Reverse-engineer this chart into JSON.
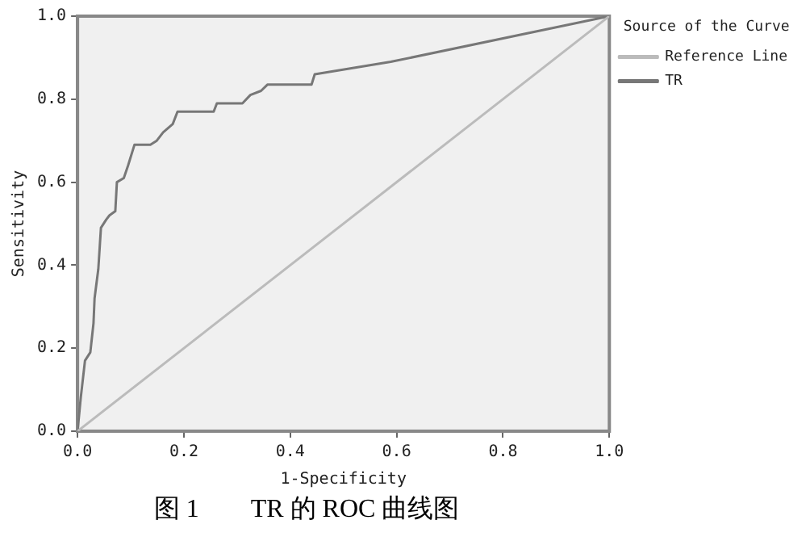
{
  "chart_data": {
    "type": "line",
    "title": "图 1　　TR 的 ROC 曲线图",
    "xlabel": "1-Specificity",
    "ylabel": "Sensitivity",
    "legend_title": "Source of the Curve",
    "legend": "right",
    "grid": false,
    "marker": "none",
    "line_style": "solid",
    "xlim": [
      0,
      1
    ],
    "ylim": [
      0,
      1
    ],
    "xticks": [
      {
        "value": 0,
        "label": "0.0"
      },
      {
        "value": 0.2,
        "label": "0.2"
      },
      {
        "value": 0.4,
        "label": "0.4"
      },
      {
        "value": 0.6,
        "label": "0.6"
      },
      {
        "value": 0.8,
        "label": "0.8"
      },
      {
        "value": 1,
        "label": "1.0"
      }
    ],
    "yticks": [
      {
        "value": 0,
        "label": "0.0"
      },
      {
        "value": 0.2,
        "label": "0.2"
      },
      {
        "value": 0.4,
        "label": "0.4"
      },
      {
        "value": 0.6,
        "label": "0.6"
      },
      {
        "value": 0.8,
        "label": "0.8"
      },
      {
        "value": 1,
        "label": "1.0"
      }
    ],
    "series": [
      {
        "name": "Reference Line",
        "color": "#bbbbbb",
        "x": [
          0,
          1
        ],
        "values": [
          0,
          1
        ]
      },
      {
        "name": "TR",
        "color": "#777777",
        "x": [
          0,
          0.006,
          0.014,
          0.024,
          0.03,
          0.032,
          0.039,
          0.044,
          0.054,
          0.06,
          0.071,
          0.074,
          0.087,
          0.095,
          0.107,
          0.137,
          0.149,
          0.161,
          0.179,
          0.188,
          0.256,
          0.262,
          0.31,
          0.325,
          0.345,
          0.357,
          0.44,
          0.446,
          0.589,
          1
        ],
        "values": [
          0,
          0.08,
          0.17,
          0.19,
          0.26,
          0.32,
          0.39,
          0.49,
          0.51,
          0.52,
          0.53,
          0.6,
          0.61,
          0.64,
          0.69,
          0.69,
          0.7,
          0.72,
          0.74,
          0.77,
          0.77,
          0.79,
          0.79,
          0.81,
          0.82,
          0.835,
          0.835,
          0.86,
          0.89,
          1
        ]
      }
    ]
  }
}
